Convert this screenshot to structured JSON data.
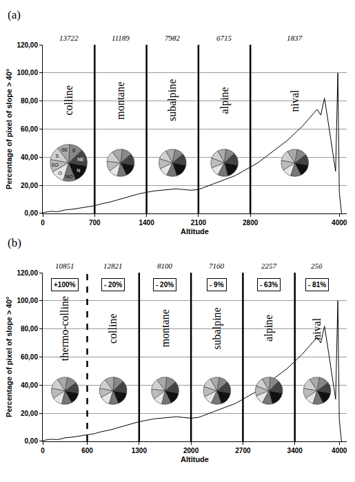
{
  "chart_data": [
    {
      "type": "line",
      "title": "(a)",
      "x_label": "Altitude",
      "y_label": "Percentage of pixel of slope > 40°",
      "x": [
        0,
        100,
        200,
        300,
        400,
        500,
        600,
        700,
        800,
        900,
        1000,
        1100,
        1200,
        1300,
        1400,
        1500,
        1600,
        1700,
        1800,
        1900,
        2000,
        2100,
        2200,
        2300,
        2400,
        2500,
        2600,
        2700,
        2800,
        2900,
        3000,
        3100,
        3200,
        3300,
        3400,
        3500,
        3600,
        3700,
        3750,
        3800,
        3850,
        3900,
        3950,
        3980,
        4000,
        4030
      ],
      "values": [
        0.5,
        1.5,
        1.2,
        2.5,
        3,
        3.8,
        4.5,
        5.5,
        7,
        8,
        9.5,
        11,
        12.5,
        14,
        15,
        16,
        16.5,
        17,
        17.5,
        17,
        16.5,
        17,
        19,
        21,
        23,
        25,
        27,
        30,
        33,
        36,
        40,
        44,
        48,
        52,
        57,
        62,
        68,
        74,
        70,
        82,
        65,
        48,
        30,
        100,
        15,
        0
      ],
      "color": "#000000",
      "xlim": [
        0,
        4100
      ],
      "xticks": [
        0,
        700,
        1400,
        2100,
        2800,
        4000
      ],
      "ylim": [
        0,
        120
      ],
      "yticks": [
        {
          "value": 0,
          "label": "0,00"
        },
        {
          "value": 20,
          "label": "20,00"
        },
        {
          "value": 40,
          "label": "40,00"
        },
        {
          "value": 60,
          "label": "60,00"
        },
        {
          "value": 80,
          "label": "80,00"
        },
        {
          "value": 100,
          "label": "100,00"
        },
        {
          "value": 120,
          "label": "120,00"
        }
      ],
      "grid": true,
      "boundaries": [
        {
          "x": 700,
          "line_style": "solid"
        },
        {
          "x": 1400,
          "line_style": "solid"
        },
        {
          "x": 2100,
          "line_style": "solid"
        },
        {
          "x": 2800,
          "line_style": "solid"
        }
      ],
      "aspect_colors": [
        "#111111",
        "#444444",
        "#888888",
        "#aaaaaa",
        "#d0d0d0",
        "#bbbbbb",
        "#e6e6e6",
        "#777777"
      ],
      "zones": [
        {
          "name": "colline",
          "from": 0,
          "to": 700,
          "pixels": 13722,
          "aspect": [
            16,
            15,
            12,
            11,
            12,
            11,
            12,
            11
          ],
          "aspect_labels": [
            "N",
            "NE",
            "E",
            "SE",
            "S",
            "SO",
            "O",
            "NO"
          ]
        },
        {
          "name": "montane",
          "from": 700,
          "to": 1400,
          "pixels": 11189,
          "aspect": [
            15,
            14,
            12,
            12,
            13,
            12,
            11,
            11
          ]
        },
        {
          "name": "subalpine",
          "from": 1400,
          "to": 2100,
          "pixels": 7982,
          "aspect": [
            17,
            14,
            11,
            11,
            12,
            12,
            11,
            12
          ]
        },
        {
          "name": "alpine",
          "from": 2100,
          "to": 2800,
          "pixels": 6715,
          "aspect": [
            18,
            15,
            11,
            10,
            11,
            12,
            11,
            12
          ]
        },
        {
          "name": "nival",
          "from": 2800,
          "to": 4000,
          "pixels": 1837,
          "aspect": [
            15,
            13,
            12,
            12,
            13,
            12,
            11,
            12
          ]
        }
      ]
    },
    {
      "type": "line",
      "title": "(b)",
      "x_label": "Altitude",
      "y_label": "Percentage of pixel of slope > 40°",
      "x": [
        0,
        100,
        200,
        300,
        400,
        500,
        600,
        700,
        800,
        900,
        1000,
        1100,
        1200,
        1300,
        1400,
        1500,
        1600,
        1700,
        1800,
        1900,
        2000,
        2100,
        2200,
        2300,
        2400,
        2500,
        2600,
        2700,
        2800,
        2900,
        3000,
        3100,
        3200,
        3300,
        3400,
        3500,
        3600,
        3700,
        3750,
        3800,
        3850,
        3900,
        3950,
        3980,
        4000,
        4030
      ],
      "values": [
        0.5,
        1.5,
        1.2,
        2.5,
        3,
        3.8,
        4.5,
        5.5,
        7,
        8,
        9.5,
        11,
        12.5,
        14,
        15,
        16,
        16.5,
        17,
        17.5,
        17,
        16.5,
        17,
        19,
        21,
        23,
        25,
        27,
        30,
        33,
        36,
        40,
        44,
        48,
        52,
        57,
        62,
        68,
        74,
        70,
        82,
        65,
        48,
        30,
        100,
        15,
        0
      ],
      "color": "#000000",
      "xlim": [
        0,
        4100
      ],
      "xticks": [
        0,
        600,
        1300,
        2000,
        2700,
        3400,
        4000
      ],
      "ylim": [
        0,
        120
      ],
      "yticks": [
        {
          "value": 0,
          "label": "0,00"
        },
        {
          "value": 20,
          "label": "20,00"
        },
        {
          "value": 40,
          "label": "40,00"
        },
        {
          "value": 60,
          "label": "60,00"
        },
        {
          "value": 80,
          "label": "80,00"
        },
        {
          "value": 100,
          "label": "100,00"
        },
        {
          "value": 120,
          "label": "120,00"
        }
      ],
      "grid": true,
      "boundaries": [
        {
          "x": 600,
          "line_style": "dashed"
        },
        {
          "x": 1300,
          "line_style": "solid"
        },
        {
          "x": 2000,
          "line_style": "solid"
        },
        {
          "x": 2700,
          "line_style": "solid"
        },
        {
          "x": 3400,
          "line_style": "solid"
        }
      ],
      "aspect_colors": [
        "#111111",
        "#444444",
        "#888888",
        "#aaaaaa",
        "#d0d0d0",
        "#bbbbbb",
        "#e6e6e6",
        "#777777"
      ],
      "zones": [
        {
          "name": "thermo-colline",
          "from": 0,
          "to": 600,
          "pixels": 10851,
          "change": {
            "value": 100,
            "label": "+100%"
          },
          "aspect": [
            14,
            13,
            12,
            12,
            13,
            12,
            12,
            12
          ]
        },
        {
          "name": "colline",
          "from": 600,
          "to": 1300,
          "pixels": 12821,
          "change": {
            "value": -20,
            "label": "- 20%"
          },
          "aspect": [
            16,
            15,
            12,
            11,
            12,
            11,
            12,
            11
          ]
        },
        {
          "name": "montane",
          "from": 1300,
          "to": 2000,
          "pixels": 8100,
          "change": {
            "value": -20,
            "label": "- 20%"
          },
          "aspect": [
            15,
            14,
            12,
            12,
            13,
            12,
            11,
            11
          ]
        },
        {
          "name": "subalpine",
          "from": 2000,
          "to": 2700,
          "pixels": 7160,
          "change": {
            "value": -9,
            "label": "- 9%"
          },
          "aspect": [
            17,
            14,
            11,
            11,
            12,
            12,
            11,
            12
          ]
        },
        {
          "name": "alpine",
          "from": 2700,
          "to": 3400,
          "pixels": 2257,
          "change": {
            "value": -63,
            "label": "- 63%"
          },
          "aspect": [
            18,
            15,
            11,
            10,
            11,
            12,
            11,
            12
          ]
        },
        {
          "name": "nival",
          "from": 3400,
          "to": 4000,
          "pixels": 256,
          "change": {
            "value": -81,
            "label": "- 81%"
          },
          "aspect": [
            15,
            13,
            12,
            12,
            13,
            12,
            11,
            12
          ]
        }
      ]
    }
  ]
}
